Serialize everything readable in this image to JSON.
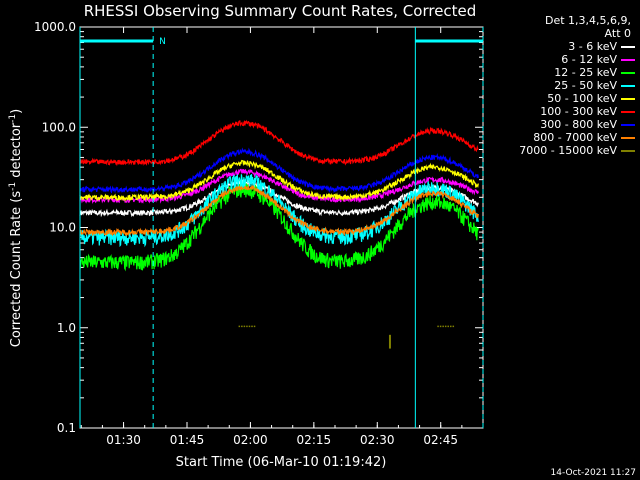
{
  "chart_data": {
    "type": "line",
    "title": "RHESSI Observing Summary Count Rates, Corrected",
    "xlabel": "Start Time (06-Mar-10 01:19:42)",
    "ylabel_main": "Corrected Count Rate (s",
    "ylabel_sup": "-1",
    "ylabel_mid": " detector",
    "ylabel_sup2": "-1",
    "ylabel_end": ")",
    "yscale": "log",
    "ylim": [
      0.1,
      1000
    ],
    "xlim": [
      "01:19:42",
      "02:55:00"
    ],
    "x_ticks": [
      "01:30",
      "01:45",
      "02:00",
      "02:15",
      "02:30",
      "02:45"
    ],
    "y_ticks": [
      "0.1",
      "1.0",
      "10.0",
      "100.0",
      "1000.0"
    ],
    "legend_header": [
      "Det 1,3,4,5,6,9,",
      "Att 0"
    ],
    "series": [
      {
        "name": "3 - 6 keV",
        "color": "#ffffff",
        "base": 14,
        "peak1": 28,
        "peak2": 25
      },
      {
        "name": "6 - 12 keV",
        "color": "#ff00ff",
        "base": 19,
        "peak1": 36,
        "peak2": 30
      },
      {
        "name": "12 - 25 keV",
        "color": "#00ff00",
        "base": 4.5,
        "peak1": 24,
        "peak2": 18
      },
      {
        "name": "25 - 50 keV",
        "color": "#00ffff",
        "base": 8,
        "peak1": 30,
        "peak2": 25
      },
      {
        "name": "50 - 100 keV",
        "color": "#ffff00",
        "base": 20,
        "peak1": 44,
        "peak2": 40
      },
      {
        "name": "100 - 300 keV",
        "color": "#ff0000",
        "base": 45,
        "peak1": 110,
        "peak2": 92
      },
      {
        "name": "300 - 800 keV",
        "color": "#0000ff",
        "base": 24,
        "peak1": 57,
        "peak2": 50
      },
      {
        "name": "800 - 7000 keV",
        "color": "#ff8000",
        "base": 9,
        "peak1": 25,
        "peak2": 22
      },
      {
        "name": "7000 - 15000 keV",
        "color": "#808000",
        "base": null,
        "peak1": null,
        "peak2": null
      }
    ],
    "annotations": {
      "night_marker": "N",
      "saa_bars": [
        [
          "01:19:42",
          "01:37:00"
        ],
        [
          "02:39:00",
          "02:55:00"
        ]
      ]
    },
    "timestamp": "14-Oct-2021 11:27"
  }
}
